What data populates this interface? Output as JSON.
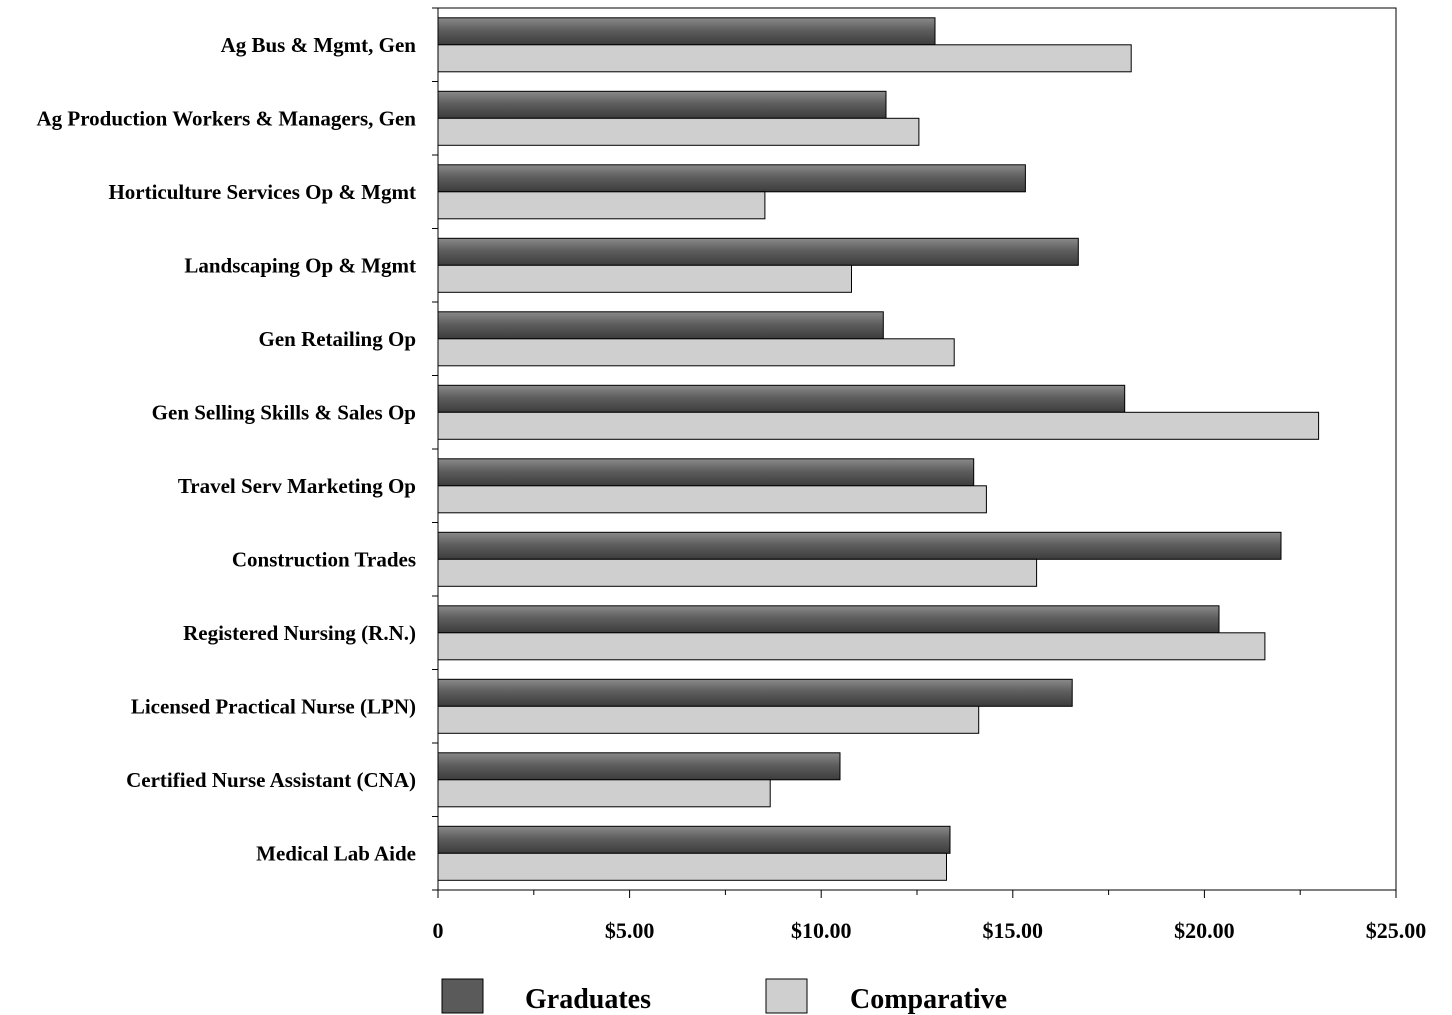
{
  "chart_data": {
    "type": "bar",
    "orientation": "horizontal",
    "categories": [
      "Ag Bus & Mgmt, Gen",
      "Ag Production Workers & Managers, Gen",
      "Horticulture Services Op & Mgmt",
      "Landscaping Op & Mgmt",
      "Gen Retailing Op",
      "Gen Selling Skills & Sales Op",
      "Travel Serv Marketing Op",
      "Construction Trades",
      "Registered Nursing (R.N.)",
      "Licensed Practical Nurse (LPN)",
      "Certified Nurse Assistant (CNA)",
      "Medical Lab Aide"
    ],
    "series": [
      {
        "name": "Graduates",
        "color": "#5a5a5a",
        "values": [
          12.97,
          11.69,
          15.33,
          16.71,
          11.62,
          17.92,
          13.98,
          22.0,
          20.38,
          16.55,
          10.49,
          13.36
        ]
      },
      {
        "name": "Comparative",
        "color": "#cfcfcf",
        "values": [
          18.09,
          12.55,
          8.53,
          10.79,
          13.47,
          22.98,
          14.31,
          15.62,
          21.58,
          14.11,
          8.67,
          13.27
        ]
      }
    ],
    "xlim": [
      0,
      25
    ],
    "x_ticks": [
      "0",
      "$5.00",
      "$10.00",
      "$15.00",
      "$20.00",
      "$25.00"
    ],
    "x_tick_values": [
      0,
      5,
      10,
      15,
      20,
      25
    ],
    "grid": false,
    "legend_position": "bottom"
  }
}
